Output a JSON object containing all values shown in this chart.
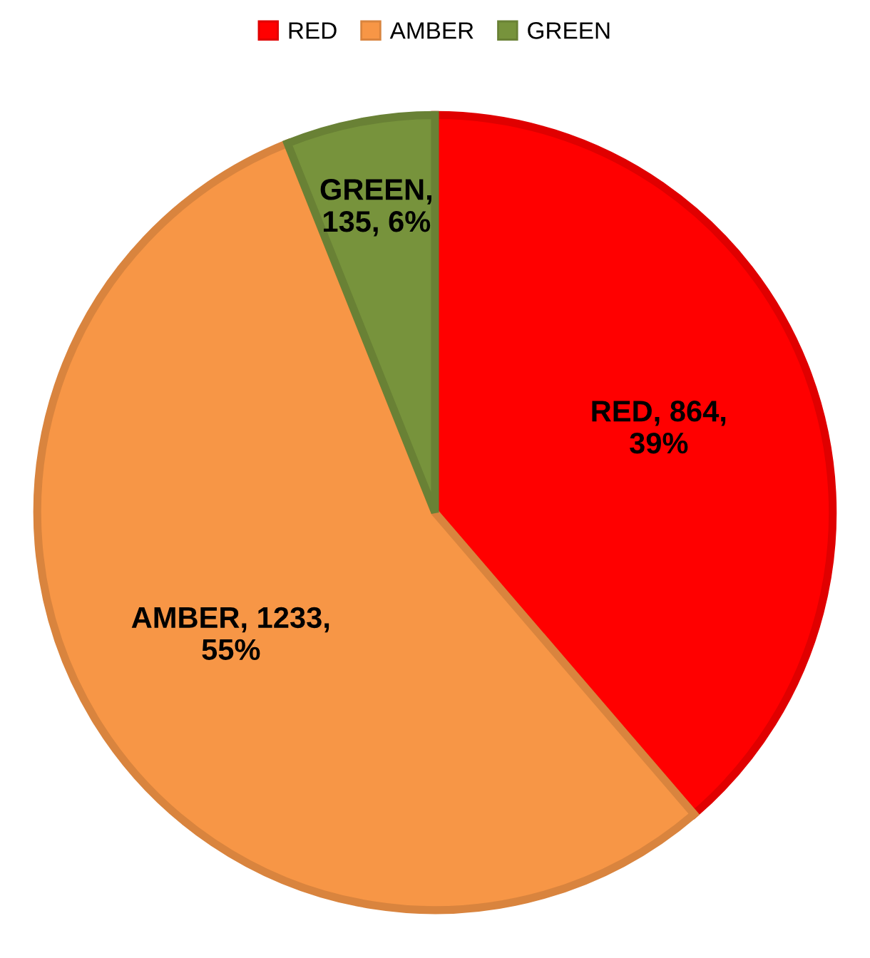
{
  "chart_data": {
    "type": "pie",
    "categories": [
      "RED",
      "AMBER",
      "GREEN"
    ],
    "values": [
      864,
      1233,
      135
    ],
    "colors": [
      "#ff0000",
      "#f79646",
      "#77933c"
    ],
    "value_labels": [
      "RED, 864,\n39%",
      "AMBER, 1233,\n55%",
      "GREEN,\n135, 6%"
    ],
    "legend": "top"
  }
}
